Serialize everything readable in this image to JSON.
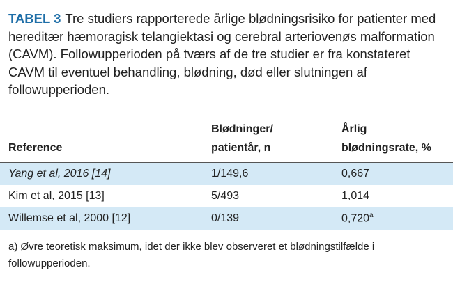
{
  "caption": {
    "label": "TABEL 3",
    "text": "Tre studiers rapporterede årlige blødningsrisiko for patienter med hereditær hæmoragisk telangiektasi og cerebral arteriovenøs malformation (CAVM). Followupperioden på tværs af de tre studier er fra konstateret CAVM til eventuel behandling, blødning, død eller slutningen af followupperioden."
  },
  "table": {
    "header": [
      "Reference",
      "Blødninger/\npatientår, n",
      "Årlig\nblødningsrate, %"
    ],
    "rows": [
      [
        "Yang et al, 2016 [14]",
        "1/149,6",
        "0,667"
      ],
      [
        "Kim et al, 2015 [13]",
        "5/493",
        "1,014"
      ],
      [
        "Willemse et al, 2000 [12]",
        "0/139",
        "0,720"
      ]
    ],
    "note_mark": "a"
  },
  "footnote": "a) Øvre teoretisk maksimum, idet der ikke blev observeret et blødningstilfælde i followupperioden."
}
